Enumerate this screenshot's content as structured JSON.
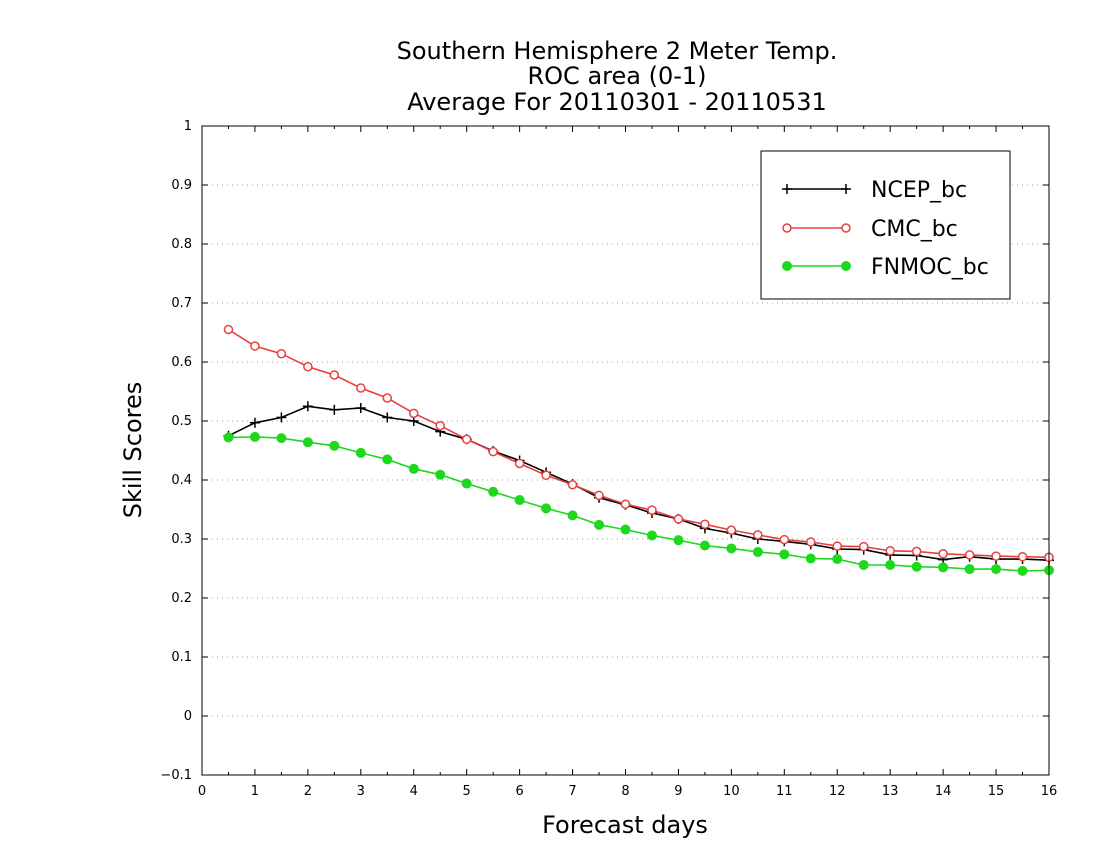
{
  "chart_data": {
    "type": "line",
    "title_lines": [
      "Southern Hemisphere 2 Meter Temp.",
      "ROC area (0-1)",
      "Average For 20110301 - 20110531"
    ],
    "xlabel": "Forecast days",
    "ylabel": "Skill Scores",
    "xlim": [
      0,
      16
    ],
    "ylim": [
      -0.1,
      1
    ],
    "xticks": [
      0,
      1,
      2,
      3,
      4,
      5,
      6,
      7,
      8,
      9,
      10,
      11,
      12,
      13,
      14,
      15,
      16
    ],
    "xtick_labels": [
      "0",
      "1",
      "2",
      "3",
      "4",
      "5",
      "6",
      "7",
      "8",
      "9",
      "10",
      "11",
      "12",
      "13",
      "14",
      "15",
      "16"
    ],
    "yticks": [
      -0.1,
      0,
      0.1,
      0.2,
      0.3,
      0.4,
      0.5,
      0.6,
      0.7,
      0.8,
      0.9,
      1
    ],
    "ytick_labels": [
      "−0.1",
      "0",
      "0.1",
      "0.2",
      "0.3",
      "0.4",
      "0.5",
      "0.6",
      "0.7",
      "0.8",
      "0.9",
      "1"
    ],
    "grid": "horizontal-dotted",
    "legend_position": "top-right",
    "x": [
      0.5,
      1,
      1.5,
      2,
      2.5,
      3,
      3.5,
      4,
      4.5,
      5,
      5.5,
      6,
      6.5,
      7,
      7.5,
      8,
      8.5,
      9,
      9.5,
      10,
      10.5,
      11,
      11.5,
      12,
      12.5,
      13,
      13.5,
      14,
      14.5,
      15,
      15.5,
      16
    ],
    "series": [
      {
        "name": "NCEP_bc",
        "color": "#000000",
        "marker": "plus",
        "values": [
          0.475,
          0.497,
          0.506,
          0.525,
          0.519,
          0.522,
          0.506,
          0.5,
          0.482,
          0.469,
          0.449,
          0.433,
          0.413,
          0.393,
          0.37,
          0.358,
          0.344,
          0.334,
          0.318,
          0.31,
          0.3,
          0.296,
          0.291,
          0.283,
          0.282,
          0.273,
          0.272,
          0.265,
          0.27,
          0.266,
          0.266,
          0.264
        ]
      },
      {
        "name": "CMC_bc",
        "color": "#e84040",
        "marker": "open-circle",
        "values": [
          0.655,
          0.627,
          0.614,
          0.592,
          0.578,
          0.556,
          0.539,
          0.513,
          0.492,
          0.469,
          0.448,
          0.428,
          0.408,
          0.392,
          0.374,
          0.359,
          0.349,
          0.334,
          0.325,
          0.315,
          0.307,
          0.299,
          0.295,
          0.288,
          0.287,
          0.28,
          0.279,
          0.275,
          0.273,
          0.271,
          0.27,
          0.269
        ]
      },
      {
        "name": "FNMOC_bc",
        "color": "#1ed81e",
        "marker": "filled-circle",
        "values": [
          0.472,
          0.473,
          0.471,
          0.464,
          0.458,
          0.446,
          0.435,
          0.419,
          0.409,
          0.394,
          0.38,
          0.366,
          0.352,
          0.34,
          0.324,
          0.316,
          0.306,
          0.298,
          0.289,
          0.284,
          0.278,
          0.274,
          0.267,
          0.266,
          0.256,
          0.256,
          0.253,
          0.252,
          0.249,
          0.249,
          0.246,
          0.247
        ]
      }
    ]
  }
}
